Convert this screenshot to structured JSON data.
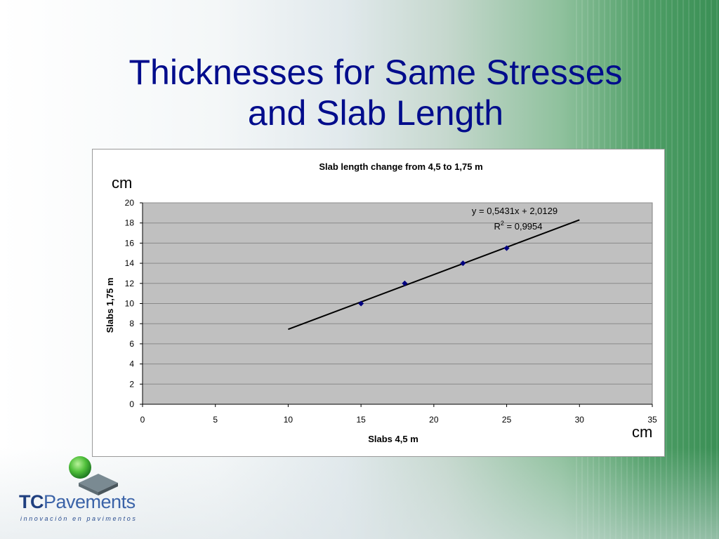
{
  "slide": {
    "title_line1": "Thicknesses for Same Stresses",
    "title_line2": "and Slab Length",
    "unit_y": "cm",
    "unit_x": "cm"
  },
  "logo": {
    "brand_tc": "TC",
    "brand_rest": "Pavements",
    "tagline": "innovación en pavimentos"
  },
  "colors": {
    "title": "#000c8c",
    "plot_area": "#c0c0c0",
    "marker": "#000080",
    "trendline": "#000000",
    "background_green": "#3a8f55"
  },
  "chart_data": {
    "type": "scatter",
    "title": "Slab length change from 4,5 to 1,75 m",
    "xlabel": "Slabs 4,5 m",
    "ylabel": "Slabs 1,75 m",
    "xlim": [
      0,
      35
    ],
    "ylim": [
      0,
      20
    ],
    "xticks": [
      "0",
      "5",
      "10",
      "15",
      "20",
      "25",
      "30",
      "35"
    ],
    "yticks": [
      "0",
      "2",
      "4",
      "6",
      "8",
      "10",
      "12",
      "14",
      "16",
      "18",
      "20"
    ],
    "grid": true,
    "legend": "none",
    "points": [
      {
        "x": 15,
        "y": 10
      },
      {
        "x": 18,
        "y": 12
      },
      {
        "x": 22,
        "y": 14
      },
      {
        "x": 25,
        "y": 15.5
      }
    ],
    "trendline": {
      "slope": 0.5431,
      "intercept": 2.0129,
      "x_range": [
        10,
        30
      ],
      "equation": "y = 0,5431x + 2,0129",
      "r2_prefix": "R",
      "r2_sup": "2",
      "r2_suffix": " = 0,9954"
    }
  }
}
